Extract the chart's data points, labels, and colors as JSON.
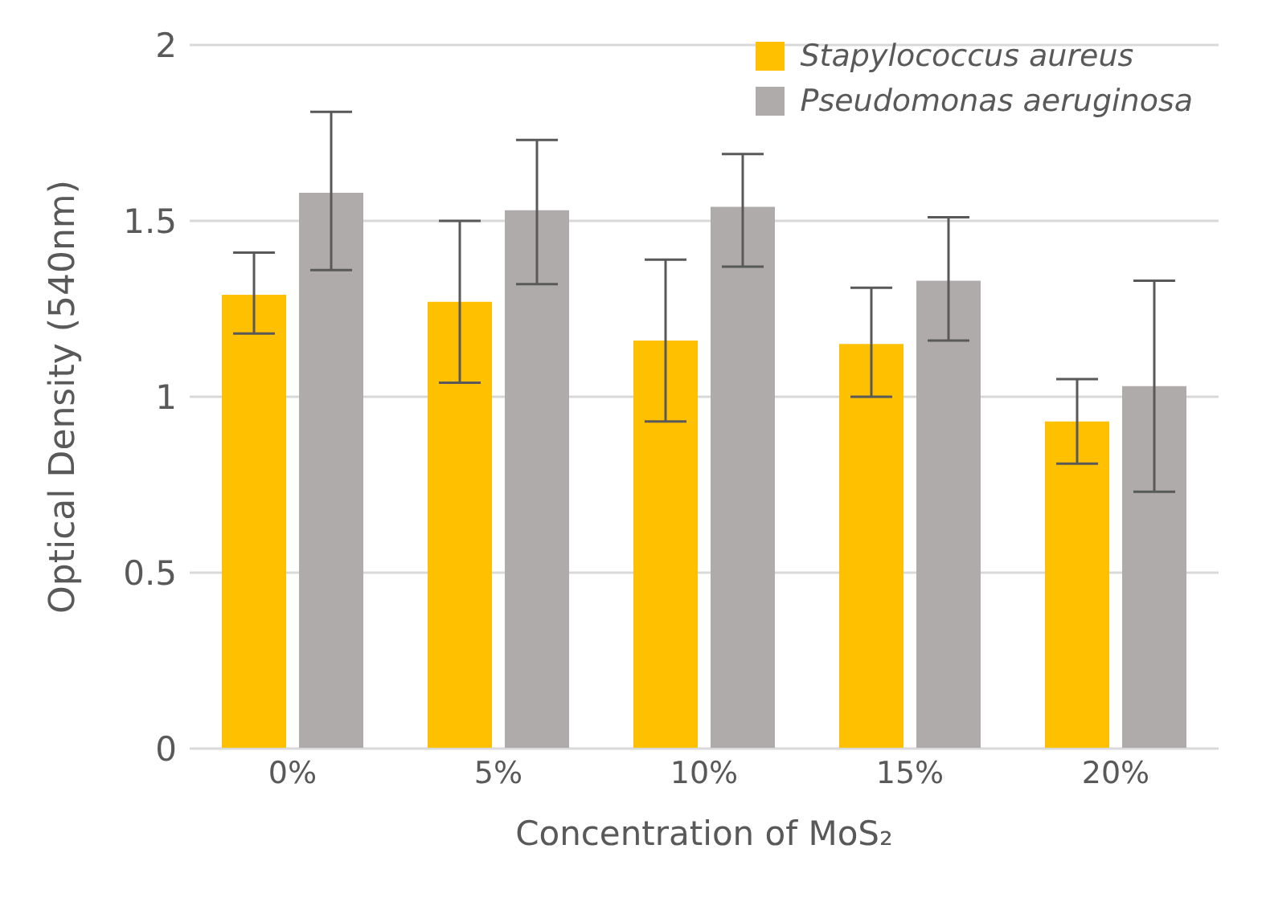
{
  "chart_data": {
    "type": "bar",
    "xlabel": "Concentration of MoS₂",
    "ylabel": "Optical Density (540nm)",
    "categories": [
      "0%",
      "5%",
      "10%",
      "15%",
      "20%"
    ],
    "series": [
      {
        "name": "Stapylococcus aureus",
        "color": "#ffc000",
        "values": [
          1.29,
          1.27,
          1.16,
          1.15,
          0.93
        ],
        "errors": [
          [
            1.18,
            1.41
          ],
          [
            1.04,
            1.5
          ],
          [
            0.93,
            1.39
          ],
          [
            1.0,
            1.31
          ],
          [
            0.81,
            1.05
          ]
        ]
      },
      {
        "name": "Pseudomonas aeruginosa",
        "color": "#afabab",
        "values": [
          1.58,
          1.53,
          1.54,
          1.33,
          1.03
        ],
        "errors": [
          [
            1.36,
            1.81
          ],
          [
            1.32,
            1.73
          ],
          [
            1.37,
            1.69
          ],
          [
            1.16,
            1.51
          ],
          [
            0.73,
            1.33
          ]
        ]
      }
    ],
    "ylim": [
      0,
      2
    ],
    "yticks": [
      0,
      0.5,
      1,
      1.5,
      2
    ],
    "grid": "y",
    "legend": "top right"
  }
}
